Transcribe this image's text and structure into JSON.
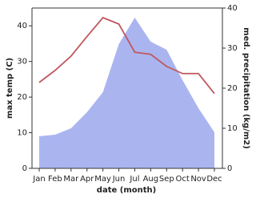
{
  "chart_data": {
    "type": "line_area",
    "x_label": "date (month)",
    "y_label": "max temp (C)",
    "y2_label": "med. precipitation (kg/m2)",
    "categories": [
      "Jan",
      "Feb",
      "Mar",
      "Apr",
      "May",
      "Jun",
      "Jul",
      "Aug",
      "Sep",
      "Oct",
      "Nov",
      "Dec"
    ],
    "series": [
      {
        "name": "max temp",
        "color": "#c0585e",
        "axis": "y",
        "values": [
          24.1,
          27.5,
          31.5,
          37,
          42.3,
          40.5,
          32.6,
          32,
          28.6,
          26.6,
          26.6,
          21
        ]
      },
      {
        "name": "precipitation",
        "color": "#aab5f0",
        "axis": "y2",
        "values": [
          8,
          8.4,
          10,
          14,
          19,
          31,
          37.6,
          31.6,
          29.6,
          22,
          15,
          9
        ]
      }
    ],
    "ylim": [
      0,
      45
    ],
    "yticks": [
      0,
      10,
      20,
      30,
      40
    ],
    "y2lim": [
      0,
      40
    ],
    "y2ticks": [
      0,
      10,
      20,
      30,
      40
    ]
  }
}
